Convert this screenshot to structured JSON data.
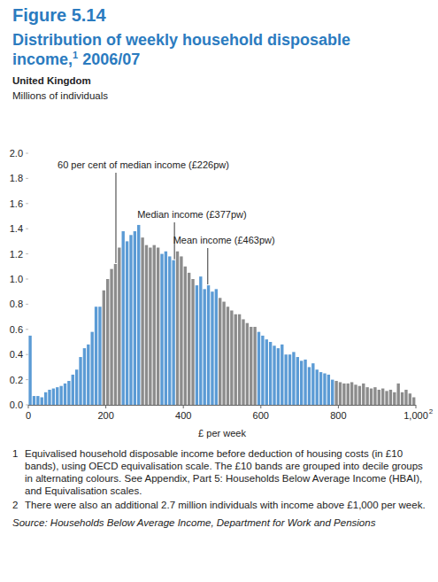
{
  "chart_data": {
    "type": "histogram",
    "figure_label": "Figure 5.14",
    "title": "Distribution of weekly household disposable income,",
    "title_note_ref": "1",
    "title_period": "2006/07",
    "region": "United Kingdom",
    "y_label": "Millions of individuals",
    "x_label": "£ per week",
    "x_note_ref": "2",
    "bins": [
      0,
      10,
      20,
      30,
      40,
      50,
      60,
      70,
      80,
      90,
      100,
      110,
      120,
      130,
      140,
      150,
      160,
      170,
      180,
      190,
      200,
      210,
      220,
      230,
      240,
      250,
      260,
      270,
      280,
      290,
      300,
      310,
      320,
      330,
      340,
      350,
      360,
      370,
      380,
      390,
      400,
      410,
      420,
      430,
      440,
      450,
      460,
      470,
      480,
      490,
      500,
      510,
      520,
      530,
      540,
      550,
      560,
      570,
      580,
      590,
      600,
      610,
      620,
      630,
      640,
      650,
      660,
      670,
      680,
      690,
      700,
      710,
      720,
      730,
      740,
      750,
      760,
      770,
      780,
      790,
      800,
      810,
      820,
      830,
      840,
      850,
      860,
      870,
      880,
      890,
      900,
      910,
      920,
      930,
      940,
      950,
      960,
      970,
      980,
      990,
      1000
    ],
    "values": [
      0.55,
      0.07,
      0.07,
      0.06,
      0.1,
      0.12,
      0.13,
      0.14,
      0.15,
      0.17,
      0.19,
      0.24,
      0.28,
      0.38,
      0.45,
      0.48,
      0.58,
      0.78,
      0.78,
      0.91,
      1.0,
      1.08,
      1.12,
      1.25,
      1.38,
      1.3,
      1.35,
      1.38,
      1.43,
      1.33,
      1.27,
      1.25,
      1.27,
      1.25,
      1.2,
      1.22,
      1.18,
      1.15,
      1.22,
      1.18,
      1.1,
      1.05,
      1.0,
      0.95,
      1.02,
      0.92,
      0.95,
      0.9,
      0.92,
      0.85,
      0.82,
      0.78,
      0.75,
      0.72,
      0.72,
      0.68,
      0.65,
      0.62,
      0.62,
      0.58,
      0.55,
      0.52,
      0.5,
      0.47,
      0.45,
      0.48,
      0.4,
      0.4,
      0.42,
      0.38,
      0.35,
      0.36,
      0.3,
      0.33,
      0.28,
      0.26,
      0.25,
      0.24,
      0.2,
      0.19,
      0.18,
      0.17,
      0.17,
      0.18,
      0.16,
      0.15,
      0.17,
      0.14,
      0.13,
      0.14,
      0.12,
      0.13,
      0.11,
      0.12,
      0.1,
      0.17,
      0.1,
      0.12,
      0.09,
      0.06
    ],
    "colors": [
      "#5b9bd5",
      "#5b9bd5",
      "#5b9bd5",
      "#5b9bd5",
      "#5b9bd5",
      "#5b9bd5",
      "#5b9bd5",
      "#5b9bd5",
      "#5b9bd5",
      "#5b9bd5",
      "#5b9bd5",
      "#5b9bd5",
      "#5b9bd5",
      "#5b9bd5",
      "#5b9bd5",
      "#5b9bd5",
      "#5b9bd5",
      "#5b9bd5",
      "#5b9bd5",
      "#8c8c8c",
      "#8c8c8c",
      "#8c8c8c",
      "#8c8c8c",
      "#8c8c8c",
      "#5b9bd5",
      "#5b9bd5",
      "#5b9bd5",
      "#5b9bd5",
      "#5b9bd5",
      "#8c8c8c",
      "#8c8c8c",
      "#8c8c8c",
      "#8c8c8c",
      "#8c8c8c",
      "#5b9bd5",
      "#5b9bd5",
      "#5b9bd5",
      "#5b9bd5",
      "#8c8c8c",
      "#8c8c8c",
      "#8c8c8c",
      "#8c8c8c",
      "#8c8c8c",
      "#5b9bd5",
      "#5b9bd5",
      "#5b9bd5",
      "#5b9bd5",
      "#5b9bd5",
      "#5b9bd5",
      "#8c8c8c",
      "#8c8c8c",
      "#8c8c8c",
      "#8c8c8c",
      "#8c8c8c",
      "#8c8c8c",
      "#8c8c8c",
      "#8c8c8c",
      "#8c8c8c",
      "#8c8c8c",
      "#5b9bd5",
      "#5b9bd5",
      "#5b9bd5",
      "#5b9bd5",
      "#5b9bd5",
      "#5b9bd5",
      "#5b9bd5",
      "#5b9bd5",
      "#5b9bd5",
      "#5b9bd5",
      "#5b9bd5",
      "#5b9bd5",
      "#5b9bd5",
      "#5b9bd5",
      "#5b9bd5",
      "#5b9bd5",
      "#5b9bd5",
      "#5b9bd5",
      "#5b9bd5",
      "#5b9bd5",
      "#8c8c8c",
      "#8c8c8c",
      "#8c8c8c",
      "#8c8c8c",
      "#8c8c8c",
      "#8c8c8c",
      "#8c8c8c",
      "#8c8c8c",
      "#8c8c8c",
      "#8c8c8c",
      "#8c8c8c",
      "#8c8c8c",
      "#8c8c8c",
      "#8c8c8c",
      "#8c8c8c",
      "#8c8c8c",
      "#8c8c8c",
      "#8c8c8c",
      "#8c8c8c",
      "#8c8c8c",
      "#8c8c8c"
    ],
    "xlim": [
      0,
      1000
    ],
    "xticks": [
      0,
      200,
      400,
      600,
      800,
      {
        "value": 1000,
        "label": "1,000"
      }
    ],
    "ylim": [
      0,
      2
    ],
    "yticks": [
      {
        "value": 0,
        "label": "0.0"
      },
      0.2,
      0.4,
      0.6,
      0.8,
      {
        "value": 1,
        "label": "1.0"
      },
      1.2,
      1.4,
      1.6,
      1.8,
      {
        "value": 2,
        "label": "2.0"
      }
    ],
    "grid": false,
    "annotations": [
      {
        "x": 226,
        "label": "60 per cent of median income (£226pw)"
      },
      {
        "x": 377,
        "label": "Median income (£377pw)"
      },
      {
        "x": 463,
        "label": "Mean income (£463pw)"
      }
    ],
    "footnotes": [
      {
        "ref": "1",
        "text": "Equivalised household disposable income before deduction of housing costs (in £10 bands), using OECD equivalisation scale. The £10 bands are grouped into decile groups in alternating colours. See Appendix, Part 5: Households Below Average Income (HBAI), and Equivalisation scales."
      },
      {
        "ref": "2",
        "text": "There were also an additional 2.7 million individuals with income above £1,000 per week."
      }
    ],
    "source": "Source: Households Below Average Income, Department for Work and Pensions"
  }
}
